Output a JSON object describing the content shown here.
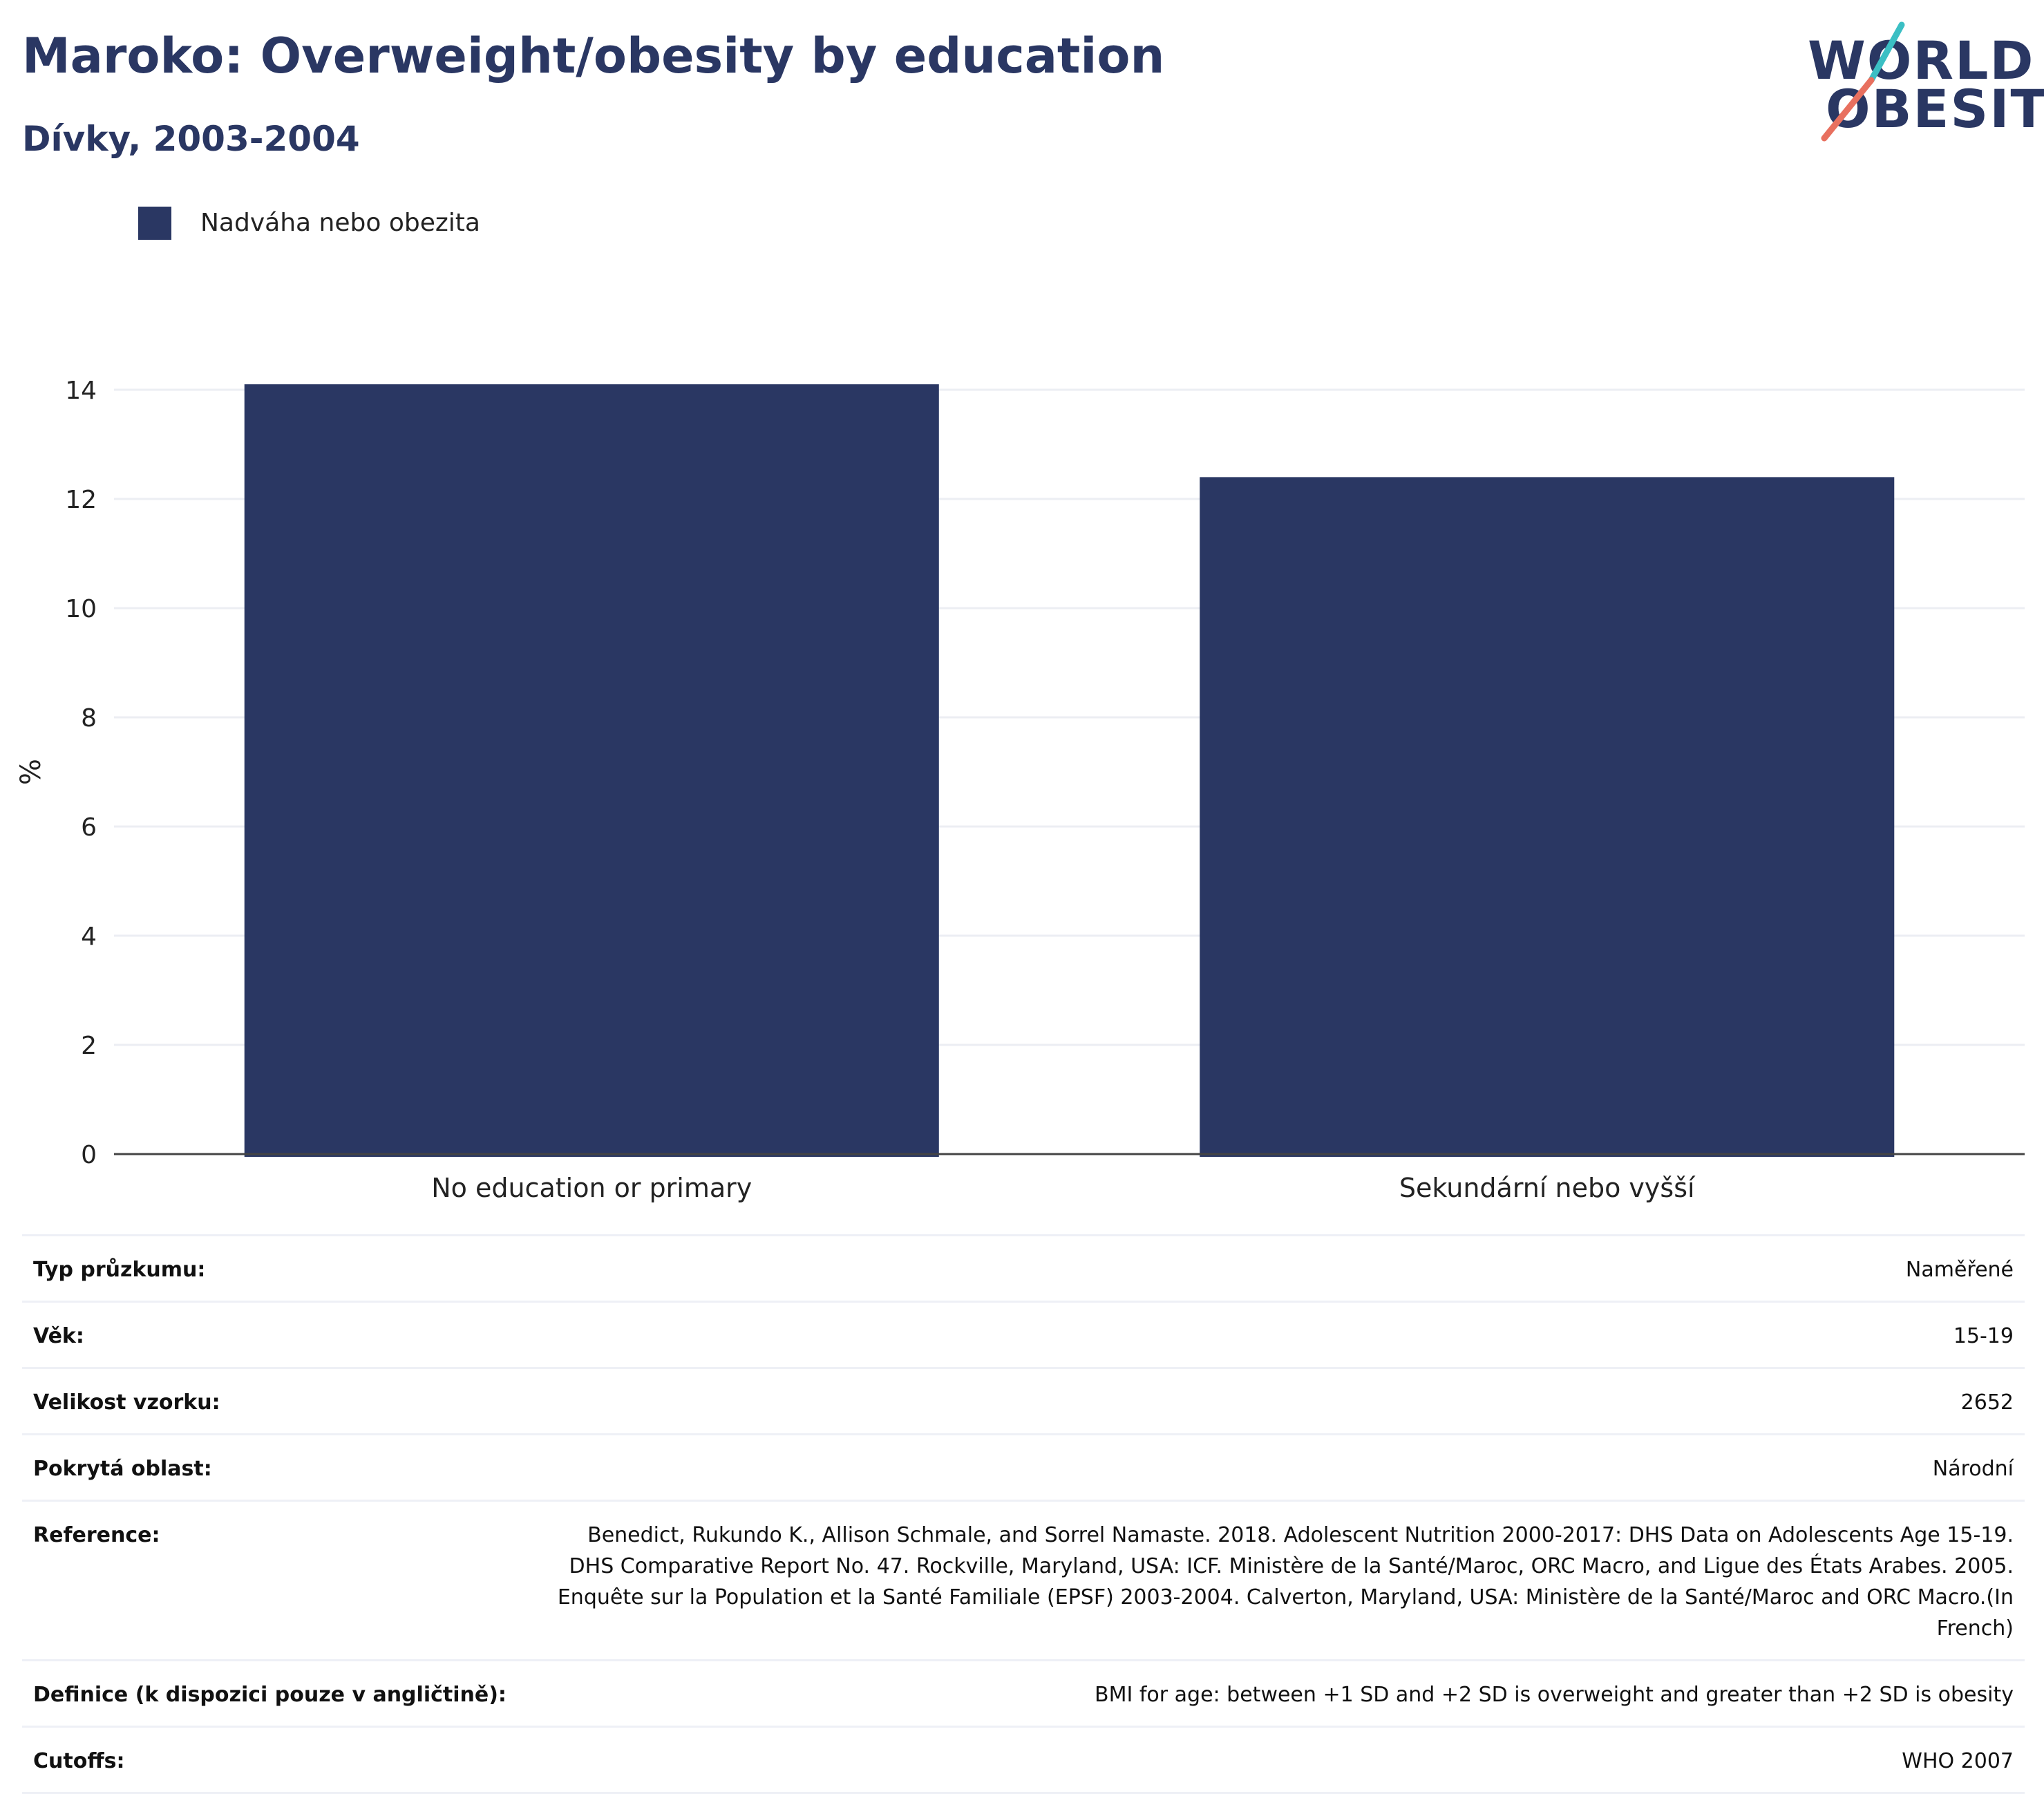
{
  "header": {
    "title": "Maroko: Overweight/obesity by education",
    "subtitle": "Dívky, 2003-2004"
  },
  "logo": {
    "line1": "WORLD",
    "line2": "OBESITY",
    "colors": {
      "text": "#2a3763",
      "slash_top": "#3bbfc4",
      "slash_bottom": "#e8705f"
    }
  },
  "legend": {
    "label": "Nadváha nebo obezita",
    "color": "#2a3763"
  },
  "chart_data": {
    "type": "bar",
    "categories": [
      "No education or primary",
      "Sekundární nebo vyšší"
    ],
    "series": [
      {
        "name": "Nadváha nebo obezita",
        "values": [
          14.1,
          12.4
        ],
        "color": "#2a3763"
      }
    ],
    "ylabel": "%",
    "ylim": [
      0,
      14
    ],
    "yticks": [
      0,
      2,
      4,
      6,
      8,
      10,
      12,
      14
    ],
    "grid": true,
    "legend_position": "top-left"
  },
  "info": [
    {
      "key": "Typ průzkumu:",
      "value": "Naměřené"
    },
    {
      "key": "Věk:",
      "value": "15-19"
    },
    {
      "key": "Velikost vzorku:",
      "value": "2652"
    },
    {
      "key": "Pokrytá oblast:",
      "value": "Národní"
    },
    {
      "key": "Reference:",
      "value": "Benedict, Rukundo K., Allison Schmale, and Sorrel Namaste. 2018. Adolescent Nutrition 2000-2017: DHS Data on Adolescents Age 15-19. DHS Comparative Report No. 47. Rockville, Maryland, USA: ICF. Ministère de la Santé/Maroc, ORC Macro, and Ligue des États Arabes. 2005. Enquête sur la Population et la Santé Familiale (EPSF) 2003-2004. Calverton, Maryland, USA: Ministère de la Santé/Maroc and ORC Macro.(In French)"
    },
    {
      "key": "Definice (k dispozici pouze v angličtině):",
      "value": "BMI for age: between +1 SD and +2 SD is overweight and greater than +2 SD is obesity"
    },
    {
      "key": "Cutoffs:",
      "value": "WHO 2007"
    }
  ]
}
